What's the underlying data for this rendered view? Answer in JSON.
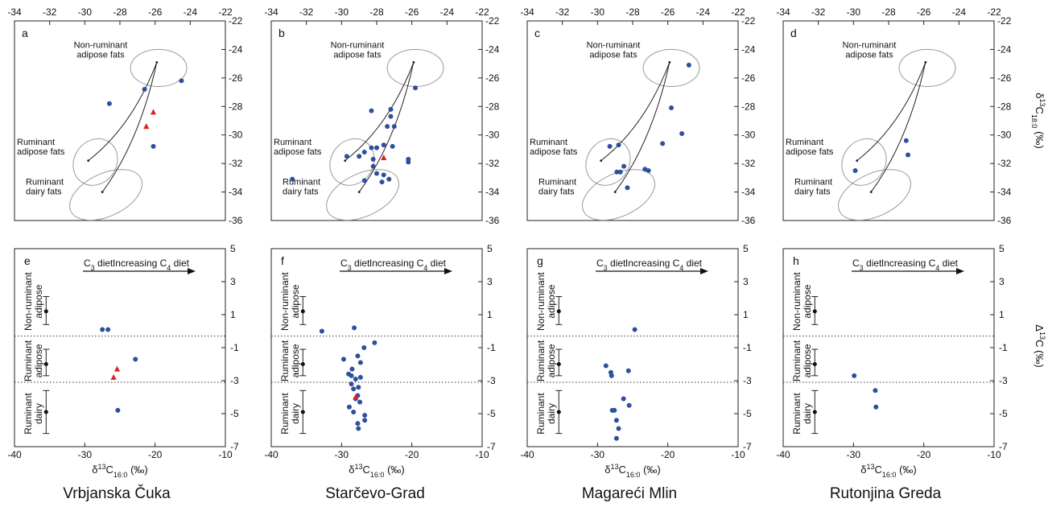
{
  "figure": {
    "site_names": [
      "Vrbjanska Čuka",
      "Starčevo-Grad",
      "Magareći Mlin",
      "Rutonjina Greda"
    ],
    "top_axis": {
      "x_ticks": [
        "-34",
        "-32",
        "-30",
        "-28",
        "-26",
        "-24",
        "-22"
      ],
      "y_ticks": [
        "-22",
        "-24",
        "-26",
        "-28",
        "-30",
        "-32",
        "-34",
        "-36"
      ],
      "y_label_main": "δ13C",
      "y_label_sub": "18:0",
      "y_label_unit": " (‰)"
    },
    "bottom_axis": {
      "x_ticks": [
        "-40",
        "-30",
        "-20",
        "-10"
      ],
      "y_ticks": [
        "5",
        "3",
        "1",
        "-1",
        "-3",
        "-5",
        "-7"
      ],
      "x_label_main": "δ13C",
      "x_label_sub": "16:0",
      "x_label_unit": " (‰)",
      "y_label": "Δ13C (‰)"
    },
    "ellipse_labels": {
      "nonruminant_line1": "Non-ruminant",
      "nonruminant_line2": "adipose fats",
      "ruminant_adipose_line1": "Ruminant",
      "ruminant_adipose_line2": "adipose fats",
      "ruminant_dairy_line1": "Ruminant",
      "ruminant_dairy_line2": "dairy fats"
    },
    "category_labels": {
      "nonruminant_1": "Non-ruminant",
      "nonruminant_2": "adipose",
      "ruminant_adipose_1": "Ruminant",
      "ruminant_adipose_2": "adipose",
      "ruminant_dairy_1": "Ruminant",
      "ruminant_dairy_2": "dairy"
    },
    "diet_labels": {
      "c3": "C3 diet",
      "c4": "Increasing C4 diet"
    },
    "colors": {
      "circle": "#2f4f9e",
      "triangle": "#e02020",
      "reference": "#999999"
    }
  },
  "chart_data": [
    {
      "type": "scatter",
      "panel": "a",
      "site": "Vrbjanska Čuka",
      "xlabel": "δ13C16:0 (‰)",
      "ylabel": "δ13C18:0 (‰)",
      "xlim": [
        -34,
        -22
      ],
      "ylim": [
        -36,
        -22
      ],
      "circles": [
        [
          -26.6,
          -26.8
        ],
        [
          -24.5,
          -26.2
        ],
        [
          -28.6,
          -27.8
        ],
        [
          -26.1,
          -30.8
        ]
      ],
      "triangles": [
        [
          -26.1,
          -28.4
        ],
        [
          -26.5,
          -29.4
        ]
      ]
    },
    {
      "type": "scatter",
      "panel": "e",
      "site": "Vrbjanska Čuka",
      "xlabel": "δ13C16:0 (‰)",
      "ylabel": "Δ13C (‰)",
      "xlim": [
        -40,
        -10
      ],
      "ylim": [
        -7,
        5
      ],
      "circles": [
        [
          -27.5,
          0.1
        ],
        [
          -26.7,
          0.1
        ],
        [
          -22.8,
          -1.7
        ],
        [
          -25.3,
          -4.8
        ]
      ],
      "triangles": [
        [
          -25.4,
          -2.3
        ],
        [
          -25.9,
          -2.8
        ]
      ]
    },
    {
      "type": "scatter",
      "panel": "b",
      "site": "Starčevo-Grad",
      "xlabel": "δ13C16:0 (‰)",
      "ylabel": "δ13C18:0 (‰)",
      "xlim": [
        -34,
        -22
      ],
      "ylim": [
        -36,
        -22
      ],
      "circles": [
        [
          -25.8,
          -26.7
        ],
        [
          -27.2,
          -28.2
        ],
        [
          -28.3,
          -28.3
        ],
        [
          -27.2,
          -28.7
        ],
        [
          -27.4,
          -29.4
        ],
        [
          -27.0,
          -29.4
        ],
        [
          -27.6,
          -30.7
        ],
        [
          -28.0,
          -30.9
        ],
        [
          -28.3,
          -30.9
        ],
        [
          -27.1,
          -30.8
        ],
        [
          -26.2,
          -31.7
        ],
        [
          -26.2,
          -31.9
        ],
        [
          -28.7,
          -31.2
        ],
        [
          -29.0,
          -31.5
        ],
        [
          -29.7,
          -31.5
        ],
        [
          -28.2,
          -31.7
        ],
        [
          -28.2,
          -32.2
        ],
        [
          -27.6,
          -32.8
        ],
        [
          -28.0,
          -32.7
        ],
        [
          -27.3,
          -33.1
        ],
        [
          -28.7,
          -33.2
        ],
        [
          -27.7,
          -33.3
        ],
        [
          -32.8,
          -33.1
        ]
      ],
      "triangles": [
        [
          -27.6,
          -31.6
        ]
      ]
    },
    {
      "type": "scatter",
      "panel": "f",
      "site": "Starčevo-Grad",
      "xlabel": "δ13C16:0 (‰)",
      "ylabel": "Δ13C (‰)",
      "xlim": [
        -40,
        -10
      ],
      "ylim": [
        -7,
        5
      ],
      "circles": [
        [
          -32.8,
          0.0
        ],
        [
          -28.2,
          0.2
        ],
        [
          -25.3,
          -0.7
        ],
        [
          -26.8,
          -1.0
        ],
        [
          -27.7,
          -1.5
        ],
        [
          -29.7,
          -1.7
        ],
        [
          -27.3,
          -1.9
        ],
        [
          -28.5,
          -2.3
        ],
        [
          -29.0,
          -2.6
        ],
        [
          -28.6,
          -2.7
        ],
        [
          -27.3,
          -2.8
        ],
        [
          -28.0,
          -2.9
        ],
        [
          -28.6,
          -3.2
        ],
        [
          -27.6,
          -3.4
        ],
        [
          -28.3,
          -3.5
        ],
        [
          -27.7,
          -3.9
        ],
        [
          -28.0,
          -4.1
        ],
        [
          -27.4,
          -4.3
        ],
        [
          -28.9,
          -4.6
        ],
        [
          -28.3,
          -4.9
        ],
        [
          -26.7,
          -5.1
        ],
        [
          -26.7,
          -5.4
        ],
        [
          -27.7,
          -5.6
        ],
        [
          -27.6,
          -5.9
        ]
      ],
      "triangles": [
        [
          -28.0,
          -4.0
        ]
      ]
    },
    {
      "type": "scatter",
      "panel": "c",
      "site": "Magareći Mlin",
      "xlabel": "δ13C16:0 (‰)",
      "ylabel": "δ13C18:0 (‰)",
      "xlim": [
        -34,
        -22
      ],
      "ylim": [
        -36,
        -22
      ],
      "circles": [
        [
          -24.8,
          -25.1
        ],
        [
          -25.8,
          -28.1
        ],
        [
          -25.2,
          -29.9
        ],
        [
          -26.3,
          -30.6
        ],
        [
          -29.3,
          -30.8
        ],
        [
          -28.8,
          -30.7
        ],
        [
          -28.5,
          -32.2
        ],
        [
          -28.7,
          -32.6
        ],
        [
          -28.9,
          -32.6
        ],
        [
          -27.3,
          -32.4
        ],
        [
          -27.1,
          -32.5
        ],
        [
          -28.3,
          -33.7
        ]
      ],
      "triangles": []
    },
    {
      "type": "scatter",
      "panel": "g",
      "site": "Magareći Mlin",
      "xlabel": "δ13C16:0 (‰)",
      "ylabel": "Δ13C (‰)",
      "xlim": [
        -40,
        -10
      ],
      "ylim": [
        -7,
        5
      ],
      "circles": [
        [
          -24.7,
          0.1
        ],
        [
          -28.8,
          -2.1
        ],
        [
          -28.1,
          -2.5
        ],
        [
          -28.0,
          -2.7
        ],
        [
          -25.6,
          -2.4
        ],
        [
          -26.3,
          -4.1
        ],
        [
          -25.5,
          -4.5
        ],
        [
          -27.6,
          -4.8
        ],
        [
          -27.9,
          -4.8
        ],
        [
          -27.3,
          -5.4
        ],
        [
          -27.0,
          -5.9
        ],
        [
          -27.3,
          -6.5
        ]
      ],
      "triangles": []
    },
    {
      "type": "scatter",
      "panel": "d",
      "site": "Rutonjina Greda",
      "xlabel": "δ13C16:0 (‰)",
      "ylabel": "δ13C18:0 (‰)",
      "xlim": [
        -34,
        -22
      ],
      "ylim": [
        -36,
        -22
      ],
      "circles": [
        [
          -27.0,
          -30.4
        ],
        [
          -26.9,
          -31.4
        ],
        [
          -29.9,
          -32.5
        ]
      ],
      "triangles": []
    },
    {
      "type": "scatter",
      "panel": "h",
      "site": "Rutonjina Greda",
      "xlabel": "δ13C16:0 (‰)",
      "ylabel": "Δ13C (‰)",
      "xlim": [
        -40,
        -10
      ],
      "ylim": [
        -7,
        5
      ],
      "circles": [
        [
          -29.9,
          -2.7
        ],
        [
          -26.9,
          -3.6
        ],
        [
          -26.8,
          -4.6
        ]
      ],
      "triangles": []
    }
  ]
}
